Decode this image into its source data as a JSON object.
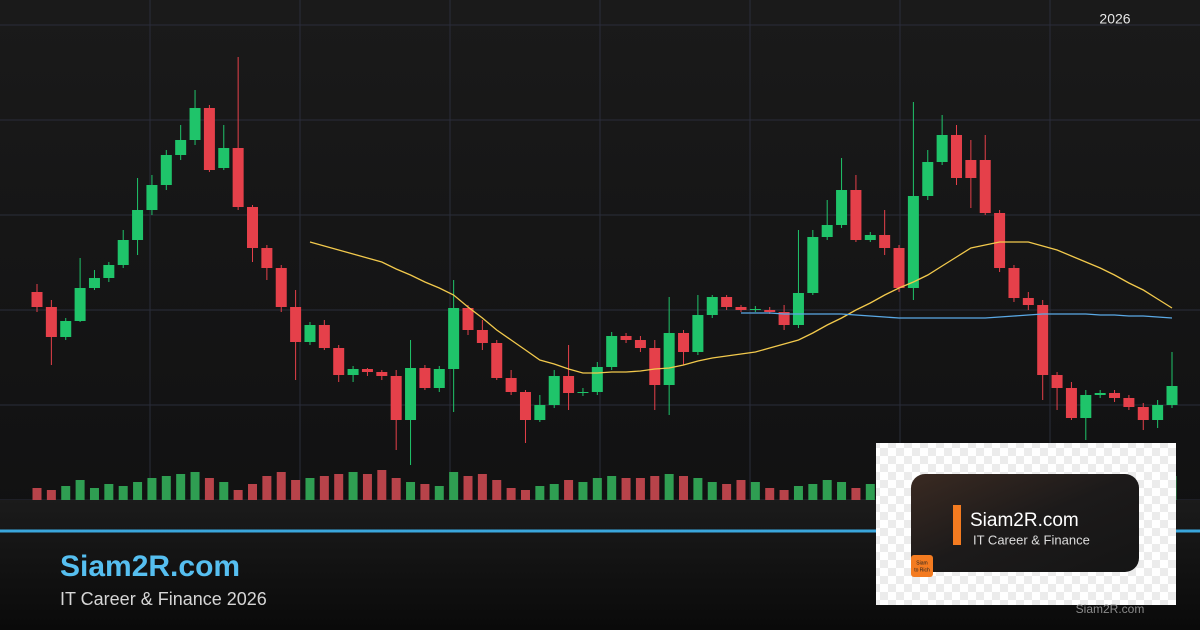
{
  "chart_data": {
    "type": "candlestick",
    "open": [
      208,
      193,
      163,
      179,
      212,
      222,
      235,
      260,
      290,
      315,
      345,
      360,
      392,
      332,
      352,
      293,
      252,
      232,
      193,
      158,
      175,
      152,
      125,
      131,
      128,
      124,
      80,
      132,
      112,
      131,
      192,
      170,
      157,
      122,
      108,
      80,
      95,
      124,
      107,
      108,
      133,
      164,
      160,
      152,
      115,
      167,
      148,
      185,
      203,
      193,
      190,
      190,
      188,
      175,
      207,
      263,
      275,
      310,
      260,
      265,
      252,
      212,
      304,
      338,
      365,
      340,
      340,
      287,
      232,
      202,
      195,
      125,
      112,
      82,
      105,
      107,
      102,
      93,
      80,
      95
    ],
    "high": [
      216,
      200,
      182,
      242,
      230,
      238,
      270,
      322,
      325,
      350,
      375,
      410,
      395,
      375,
      443,
      295,
      255,
      235,
      210,
      178,
      180,
      155,
      134,
      132,
      130,
      130,
      160,
      135,
      134,
      220,
      195,
      180,
      160,
      130,
      110,
      105,
      130,
      155,
      112,
      138,
      168,
      167,
      164,
      160,
      203,
      170,
      205,
      205,
      205,
      195,
      194,
      193,
      195,
      270,
      270,
      300,
      342,
      325,
      268,
      290,
      255,
      398,
      350,
      385,
      375,
      360,
      365,
      290,
      235,
      208,
      200,
      128,
      118,
      110,
      110,
      110,
      105,
      97,
      100,
      148
    ],
    "low": [
      188,
      135,
      160,
      178,
      210,
      218,
      232,
      245,
      285,
      310,
      340,
      355,
      328,
      330,
      290,
      238,
      220,
      188,
      120,
      155,
      150,
      118,
      118,
      124,
      120,
      50,
      35,
      110,
      108,
      88,
      165,
      150,
      120,
      105,
      57,
      78,
      92,
      90,
      104,
      105,
      130,
      157,
      148,
      90,
      85,
      135,
      145,
      182,
      190,
      188,
      188,
      186,
      170,
      172,
      205,
      260,
      272,
      258,
      258,
      245,
      208,
      200,
      300,
      335,
      315,
      292,
      285,
      228,
      198,
      190,
      100,
      90,
      80,
      60,
      102,
      98,
      90,
      70,
      72,
      92
    ],
    "close": [
      193,
      163,
      179,
      212,
      222,
      235,
      260,
      290,
      315,
      345,
      360,
      392,
      330,
      352,
      293,
      252,
      232,
      193,
      158,
      175,
      152,
      125,
      131,
      128,
      124,
      80,
      132,
      112,
      131,
      192,
      170,
      157,
      122,
      108,
      80,
      95,
      124,
      107,
      108,
      133,
      164,
      160,
      152,
      115,
      167,
      148,
      185,
      203,
      193,
      190,
      191,
      188,
      175,
      207,
      263,
      275,
      310,
      260,
      265,
      252,
      212,
      304,
      338,
      365,
      322,
      322,
      287,
      232,
      202,
      195,
      125,
      112,
      82,
      105,
      107,
      102,
      93,
      80,
      95,
      114
    ],
    "ylim": [
      0,
      480
    ],
    "volume": [
      12,
      10,
      14,
      20,
      12,
      16,
      14,
      18,
      22,
      24,
      26,
      28,
      22,
      18,
      10,
      16,
      24,
      28,
      20,
      22,
      24,
      26,
      28,
      26,
      30,
      22,
      18,
      16,
      14,
      28,
      24,
      26,
      20,
      12,
      10,
      14,
      16,
      20,
      18,
      22,
      24,
      22,
      22,
      24,
      26,
      24,
      22,
      18,
      16,
      20,
      18,
      12,
      10,
      14,
      16,
      20,
      18,
      12,
      16,
      14,
      12,
      20,
      22,
      24,
      26,
      22,
      18,
      16,
      14,
      12,
      18,
      20,
      22,
      14,
      12,
      16,
      18,
      20,
      14,
      24
    ],
    "volume_ylim": [
      0,
      40
    ],
    "up_color": "#1fc46a",
    "down_color": "#e5404a",
    "series": [
      {
        "color": "#f2c94c",
        "values": [
          null,
          null,
          null,
          null,
          null,
          null,
          null,
          null,
          null,
          null,
          null,
          null,
          null,
          null,
          null,
          null,
          null,
          null,
          null,
          258,
          254,
          250,
          246,
          242,
          238,
          231,
          225,
          218,
          212,
          205,
          193,
          182,
          170,
          160,
          150,
          140,
          136,
          131,
          127,
          127,
          128,
          128,
          129,
          131,
          132,
          135,
          139,
          142,
          144,
          146,
          148,
          152,
          156,
          160,
          167,
          175,
          182,
          190,
          197,
          205,
          212,
          218,
          225,
          234,
          243,
          252,
          255,
          258,
          258,
          258,
          254,
          250,
          244,
          238,
          232,
          225,
          217,
          210,
          201,
          192
        ]
      },
      {
        "color": "#5aa9e6",
        "values": [
          null,
          null,
          null,
          null,
          null,
          null,
          null,
          null,
          null,
          null,
          null,
          null,
          null,
          null,
          null,
          null,
          null,
          null,
          null,
          null,
          null,
          null,
          null,
          null,
          null,
          null,
          null,
          null,
          null,
          null,
          null,
          null,
          null,
          null,
          null,
          null,
          null,
          null,
          null,
          null,
          null,
          null,
          null,
          null,
          null,
          null,
          null,
          null,
          null,
          187,
          187,
          187,
          186,
          186,
          186,
          186,
          186,
          185,
          184,
          183,
          182,
          182,
          182,
          182,
          182,
          182,
          182,
          183,
          184,
          185,
          186,
          186,
          186,
          186,
          185,
          185,
          184,
          184,
          183,
          182
        ]
      }
    ]
  },
  "header": {
    "year": "2026"
  },
  "banner": {
    "title": "Siam2R.com",
    "subtitle": "IT Career & Finance 2026"
  },
  "logo_card": {
    "title": "Siam2R.com",
    "subtitle": "IT Career & Finance",
    "badge": [
      "Siam",
      "to Rich"
    ]
  },
  "watermark": "Siam2R.com"
}
